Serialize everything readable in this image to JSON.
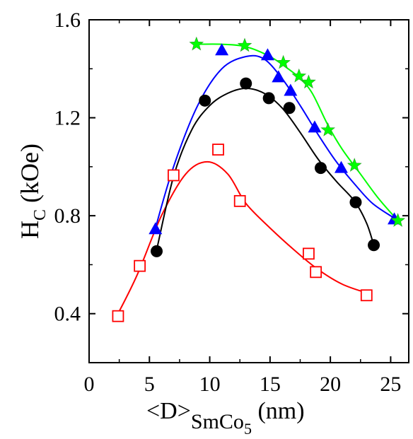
{
  "chart_data": {
    "type": "scatter",
    "title": "",
    "xlabel": {
      "main": "<D>",
      "sub": "SmCo",
      "sub2": "5",
      "unit": " (nm)"
    },
    "ylabel": {
      "main": "H",
      "sub": "C",
      "unit": " (kOe)"
    },
    "xlim": [
      0,
      26.5
    ],
    "ylim": [
      0.2,
      1.6
    ],
    "xticks": [
      0,
      5,
      10,
      15,
      20,
      25
    ],
    "yticks": [
      0.4,
      0.8,
      1.2,
      1.6
    ],
    "xtick_labels": [
      "0",
      "5",
      "10",
      "15",
      "20",
      "25"
    ],
    "ytick_labels": [
      "0.4",
      "0.8",
      "1.2",
      "1.6"
    ],
    "grid": false,
    "series": [
      {
        "marker": "open-square",
        "color": "#ff0000",
        "points": [
          [
            2.4,
            0.39
          ],
          [
            4.2,
            0.595
          ],
          [
            7.0,
            0.965
          ],
          [
            10.7,
            1.07
          ],
          [
            12.5,
            0.86
          ],
          [
            18.2,
            0.645
          ],
          [
            18.8,
            0.57
          ],
          [
            23.0,
            0.475
          ]
        ],
        "fit": [
          [
            2.4,
            0.4
          ],
          [
            4.0,
            0.56
          ],
          [
            6.0,
            0.8
          ],
          [
            8.0,
            0.97
          ],
          [
            9.8,
            1.02
          ],
          [
            11.5,
            0.97
          ],
          [
            13.0,
            0.85
          ],
          [
            15.0,
            0.75
          ],
          [
            17.0,
            0.66
          ],
          [
            19.0,
            0.58
          ],
          [
            21.0,
            0.52
          ],
          [
            23.0,
            0.485
          ]
        ]
      },
      {
        "marker": "filled-circle",
        "color": "#000000",
        "points": [
          [
            5.6,
            0.655
          ],
          [
            9.6,
            1.27
          ],
          [
            13.0,
            1.34
          ],
          [
            14.9,
            1.28
          ],
          [
            16.6,
            1.24
          ],
          [
            19.2,
            0.995
          ],
          [
            22.1,
            0.855
          ],
          [
            23.6,
            0.68
          ]
        ],
        "fit": [
          [
            5.6,
            0.66
          ],
          [
            7.0,
            0.96
          ],
          [
            8.5,
            1.15
          ],
          [
            10.0,
            1.25
          ],
          [
            11.5,
            1.3
          ],
          [
            13.0,
            1.32
          ],
          [
            14.5,
            1.3
          ],
          [
            16.0,
            1.24
          ],
          [
            17.5,
            1.14
          ],
          [
            19.0,
            1.03
          ],
          [
            20.5,
            0.94
          ],
          [
            22.0,
            0.86
          ],
          [
            23.0,
            0.77
          ],
          [
            23.6,
            0.68
          ]
        ]
      },
      {
        "marker": "filled-triangle",
        "color": "#0000ff",
        "points": [
          [
            5.5,
            0.745
          ],
          [
            11.0,
            1.475
          ],
          [
            14.8,
            1.455
          ],
          [
            15.7,
            1.365
          ],
          [
            16.7,
            1.31
          ],
          [
            18.7,
            1.16
          ],
          [
            20.9,
            0.995
          ],
          [
            25.3,
            0.785
          ]
        ],
        "fit": [
          [
            5.5,
            0.75
          ],
          [
            7.0,
            1.0
          ],
          [
            9.0,
            1.25
          ],
          [
            11.0,
            1.4
          ],
          [
            13.0,
            1.45
          ],
          [
            14.5,
            1.44
          ],
          [
            16.0,
            1.36
          ],
          [
            17.5,
            1.25
          ],
          [
            19.0,
            1.13
          ],
          [
            20.5,
            1.02
          ],
          [
            22.0,
            0.93
          ],
          [
            23.5,
            0.85
          ],
          [
            25.3,
            0.79
          ]
        ]
      },
      {
        "marker": "star",
        "color": "#00ff00",
        "points": [
          [
            8.9,
            1.5
          ],
          [
            12.9,
            1.495
          ],
          [
            16.1,
            1.425
          ],
          [
            17.4,
            1.37
          ],
          [
            18.2,
            1.345
          ],
          [
            19.8,
            1.15
          ],
          [
            22.0,
            1.005
          ],
          [
            25.6,
            0.78
          ]
        ],
        "fit": [
          [
            8.9,
            1.5
          ],
          [
            11.0,
            1.5
          ],
          [
            13.0,
            1.49
          ],
          [
            15.0,
            1.45
          ],
          [
            16.5,
            1.4
          ],
          [
            17.5,
            1.36
          ],
          [
            18.5,
            1.3
          ],
          [
            19.8,
            1.17
          ],
          [
            21.0,
            1.07
          ],
          [
            22.5,
            0.97
          ],
          [
            24.0,
            0.87
          ],
          [
            25.6,
            0.78
          ]
        ]
      }
    ]
  }
}
